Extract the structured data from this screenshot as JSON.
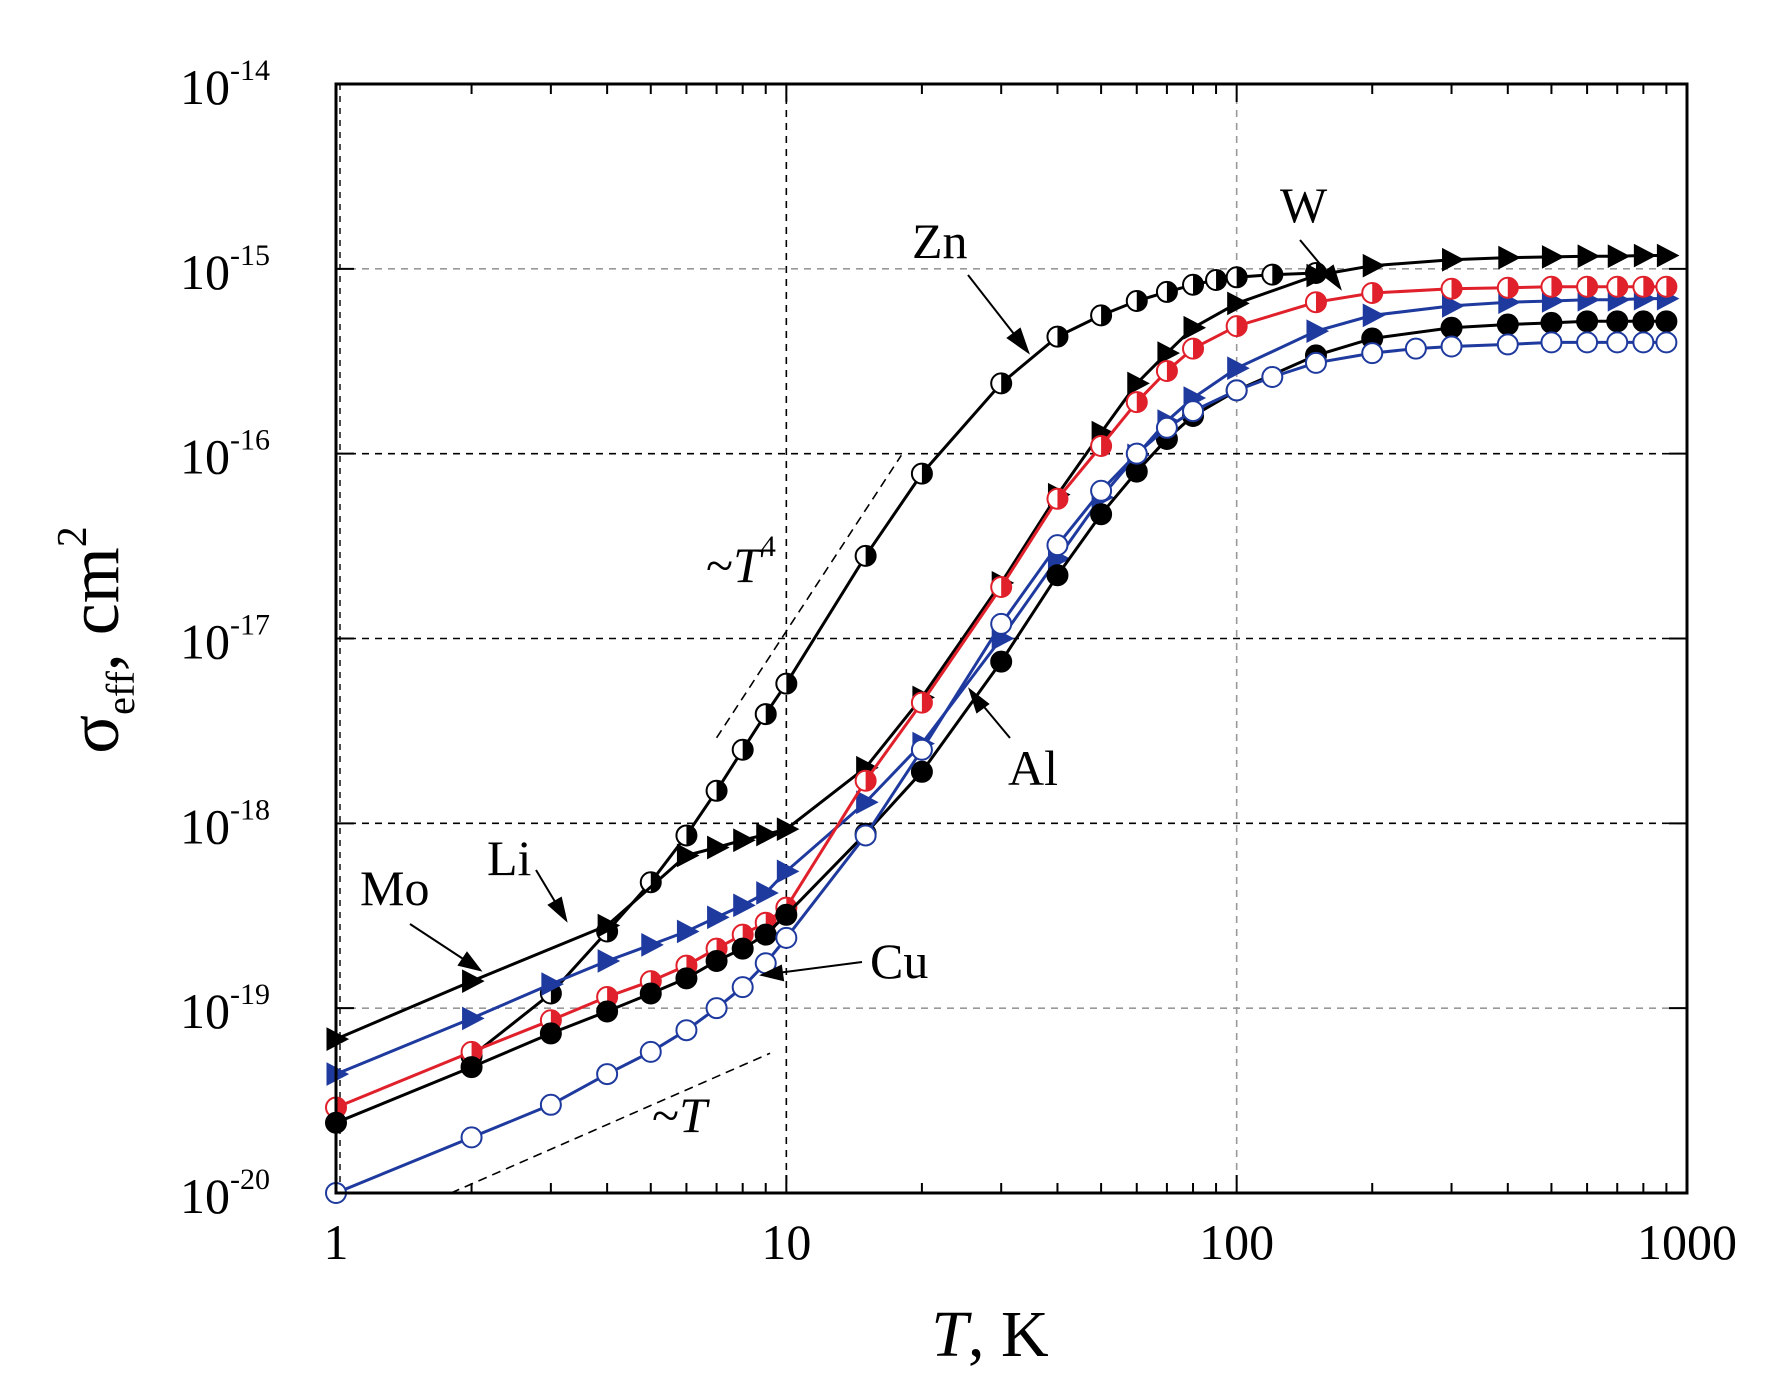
{
  "chart_data": {
    "type": "line",
    "xscale": "log",
    "yscale": "log",
    "xlim": [
      1,
      1000
    ],
    "ylim": [
      1e-20,
      1e-14
    ],
    "x_ticks": [
      1,
      10,
      100,
      1000
    ],
    "x_tick_labels": [
      "1",
      "10",
      "100",
      "1000"
    ],
    "y_ticks": [
      1e-20,
      1e-19,
      1e-18,
      1e-17,
      1e-16,
      1e-15,
      1e-14
    ],
    "y_tick_base": "10",
    "y_tick_exponents": [
      "-20",
      "-19",
      "-18",
      "-17",
      "-16",
      "-15",
      "-14"
    ],
    "xlabel": {
      "italic": "T",
      "rest": ", K"
    },
    "ylabel": {
      "symbol": "σ",
      "subscript": "eff",
      "rest": ", cm",
      "superscript": "2"
    },
    "grid": true,
    "series": [
      {
        "name": "Zn",
        "color": "#000000",
        "marker": "circle-half",
        "x": [
          2,
          3,
          4,
          5,
          6,
          7,
          8,
          9,
          10,
          15,
          20,
          30,
          40,
          50,
          60,
          70,
          80,
          90,
          100,
          120,
          150
        ],
        "y": [
          5.5e-20,
          1.2e-19,
          2.6e-19,
          4.8e-19,
          8.6e-19,
          1.5e-18,
          2.5e-18,
          3.9e-18,
          5.7e-18,
          2.8e-17,
          7.8e-17,
          2.4e-16,
          4.3e-16,
          5.6e-16,
          6.7e-16,
          7.5e-16,
          8.2e-16,
          8.7e-16,
          9e-16,
          9.3e-16,
          9.5e-16
        ]
      },
      {
        "name": "Mo",
        "color": "#000000",
        "marker": "triangle-right",
        "x": [
          1,
          2,
          4,
          6,
          7,
          8,
          9,
          10,
          15,
          20,
          30,
          40,
          50,
          60,
          70,
          80,
          100,
          150,
          200,
          300,
          400,
          500,
          600,
          700,
          800,
          900
        ],
        "y": [
          6.8e-20,
          1.4e-19,
          2.8e-19,
          6.7e-19,
          7.4e-19,
          8.1e-19,
          8.7e-19,
          9.3e-19,
          2e-18,
          4.8e-18,
          2e-17,
          6e-17,
          1.3e-16,
          2.4e-16,
          3.5e-16,
          4.8e-16,
          6.5e-16,
          9.2e-16,
          1.04e-15,
          1.12e-15,
          1.15e-15,
          1.16e-15,
          1.17e-15,
          1.17e-15,
          1.18e-15,
          1.18e-15
        ]
      },
      {
        "name": "Li",
        "color": "#1f3a9e",
        "marker": "triangle-right",
        "x": [
          1,
          2,
          3,
          4,
          5,
          6,
          7,
          8,
          9,
          10,
          15,
          20,
          30,
          40,
          50,
          60,
          70,
          80,
          100,
          150,
          200,
          300,
          400,
          500,
          600,
          700,
          800,
          900
        ],
        "y": [
          4.4e-20,
          8.8e-20,
          1.35e-19,
          1.8e-19,
          2.2e-19,
          2.6e-19,
          3.1e-19,
          3.6e-19,
          4.2e-19,
          5.5e-19,
          1.3e-18,
          2.7e-18,
          1e-17,
          2.7e-17,
          5.8e-17,
          9.8e-17,
          1.5e-16,
          2e-16,
          2.9e-16,
          4.6e-16,
          5.6e-16,
          6.3e-16,
          6.6e-16,
          6.7e-16,
          6.8e-16,
          6.8e-16,
          6.9e-16,
          6.9e-16
        ]
      },
      {
        "name": "W",
        "color": "#e0202a",
        "marker": "circle-half",
        "x": [
          1,
          2,
          3,
          4,
          5,
          6,
          7,
          8,
          9,
          10,
          15,
          20,
          30,
          40,
          50,
          60,
          70,
          80,
          100,
          150,
          200,
          300,
          400,
          500,
          600,
          700,
          800,
          900
        ],
        "y": [
          2.9e-20,
          5.8e-20,
          8.6e-20,
          1.15e-19,
          1.4e-19,
          1.7e-19,
          2.1e-19,
          2.5e-19,
          2.9e-19,
          3.5e-19,
          1.7e-18,
          4.5e-18,
          1.9e-17,
          5.7e-17,
          1.1e-16,
          1.9e-16,
          2.8e-16,
          3.7e-16,
          4.9e-16,
          6.6e-16,
          7.4e-16,
          7.8e-16,
          7.9e-16,
          8e-16,
          8e-16,
          8e-16,
          8e-16,
          8e-16
        ]
      },
      {
        "name": "Al",
        "color": "#000000",
        "marker": "circle-filled",
        "x": [
          1,
          2,
          3,
          4,
          5,
          6,
          7,
          8,
          9,
          10,
          15,
          20,
          30,
          40,
          50,
          60,
          70,
          80,
          100,
          150,
          200,
          300,
          400,
          500,
          600,
          700,
          800,
          900
        ],
        "y": [
          2.4e-20,
          4.8e-20,
          7.3e-20,
          9.6e-20,
          1.2e-19,
          1.45e-19,
          1.8e-19,
          2.1e-19,
          2.5e-19,
          3.2e-19,
          8.8e-19,
          1.9e-18,
          7.5e-18,
          2.2e-17,
          4.7e-17,
          8e-17,
          1.2e-16,
          1.6e-16,
          2.2e-16,
          3.4e-16,
          4.2e-16,
          4.8e-16,
          5e-16,
          5.1e-16,
          5.2e-16,
          5.2e-16,
          5.2e-16,
          5.2e-16
        ]
      },
      {
        "name": "Cu",
        "color": "#1f3a9e",
        "marker": "circle-open",
        "x": [
          1,
          2,
          3,
          4,
          5,
          6,
          7,
          8,
          9,
          10,
          15,
          20,
          30,
          40,
          50,
          60,
          70,
          80,
          100,
          120,
          150,
          200,
          250,
          300,
          400,
          500,
          600,
          700,
          800,
          900
        ],
        "y": [
          1e-20,
          2e-20,
          3e-20,
          4.4e-20,
          5.8e-20,
          7.6e-20,
          1e-19,
          1.3e-19,
          1.75e-19,
          2.4e-19,
          8.6e-19,
          2.5e-18,
          1.2e-17,
          3.2e-17,
          6.3e-17,
          1e-16,
          1.38e-16,
          1.7e-16,
          2.2e-16,
          2.6e-16,
          3.1e-16,
          3.5e-16,
          3.7e-16,
          3.8e-16,
          3.9e-16,
          4e-16,
          4e-16,
          4e-16,
          4e-16,
          4e-16
        ]
      }
    ],
    "guides": [
      {
        "label_pre": "~",
        "label_italic": "T",
        "label_sup": "4",
        "x": [
          7,
          18
        ],
        "y": [
          2.9e-18,
          9.8e-17
        ]
      },
      {
        "label_pre": "~",
        "label_italic": "T",
        "label_sup": "",
        "x": [
          1.8,
          9.2
        ],
        "y": [
          1e-20,
          5.7e-20
        ]
      }
    ],
    "annotations": [
      {
        "text": "Zn"
      },
      {
        "text": "W"
      },
      {
        "text": "Mo"
      },
      {
        "text": "Li"
      },
      {
        "text": "Al"
      },
      {
        "text": "Cu"
      }
    ]
  }
}
